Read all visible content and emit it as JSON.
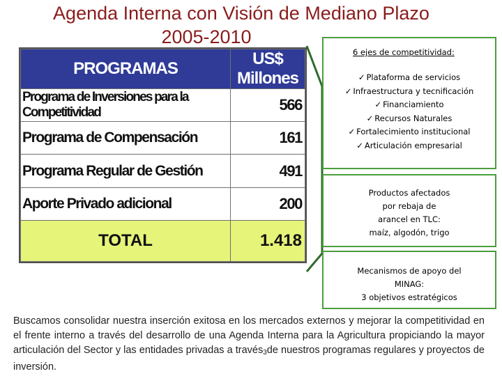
{
  "title": {
    "line1": "Agenda Interna con Visión de Mediano Plazo",
    "line2": "2005-2010"
  },
  "table": {
    "headers": [
      "PROGRAMAS",
      "US$ Millones"
    ],
    "rows": [
      {
        "name": "Programa de Inversiones para la Competitividad",
        "value": "566"
      },
      {
        "name": "Programa de Compensación",
        "value": "161"
      },
      {
        "name": "Programa Regular de Gestión",
        "value": "491"
      },
      {
        "name": "Aporte Privado adicional",
        "value": "200"
      }
    ],
    "total": {
      "name": "TOTAL",
      "value": "1.418"
    },
    "colors": {
      "header_bg": "#2f3b97",
      "total_bg": "#e6f47a",
      "border": "#505050"
    }
  },
  "ejes_box": {
    "title": "6 ejes de competitividad:",
    "items": [
      "Plataforma de servicios",
      "Infraestructura y tecnificación",
      "Financiamiento",
      "Recursos Naturales",
      "Fortalecimiento institucional",
      "Articulación empresarial"
    ],
    "check_icon": "checkmark-icon"
  },
  "productos_box": {
    "lines": [
      "Productos afectados",
      "por rebaja de",
      "arancel en TLC:",
      "maíz, algodón, trigo"
    ]
  },
  "mecanismos_box": {
    "lines": [
      "Mecanismos de apoyo del",
      "MINAG:",
      "3 objetivos estratégicos"
    ]
  },
  "caption": {
    "text_before": "Buscamos consolidar nuestra inserción exitosa en los mercados externos y mejorar la competitividad en el frente interno a través del desarrollo de una Agenda Interna para la Agricultura propiciando la mayor articulación del Sector y las entidades privadas a través",
    "page_number": "3",
    "text_after": "de nuestros programas regulares y proyectos de inversión."
  },
  "colors": {
    "title": "#8a1c1c",
    "box_border": "#4a9e3c",
    "bracket": "#2e6b2a"
  }
}
